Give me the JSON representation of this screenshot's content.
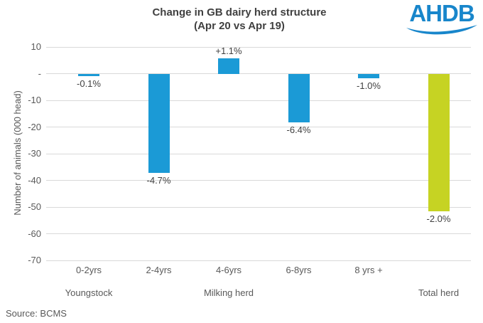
{
  "header": {
    "title_line1": "Change in GB dairy herd structure",
    "title_line2": "(Apr 20 vs Apr 19)",
    "logo_text": "AHDB"
  },
  "footer": {
    "source": "Source: BCMS"
  },
  "colors": {
    "bar_blue": "#1b9ad6",
    "bar_lime": "#c6d323",
    "logo_blue": "#1886cb",
    "gridline": "#d9d9d9",
    "title_text": "#404040",
    "axis_text": "#595959"
  },
  "chart_data": {
    "type": "bar",
    "title": "Change in GB dairy herd structure (Apr 20 vs Apr 19)",
    "ylabel": "Number of animals (000 head)",
    "ylim": [
      -70,
      10
    ],
    "ytick_step": 10,
    "ytick_labels": [
      "10",
      "-",
      "-10",
      "-20",
      "-30",
      "-40",
      "-50",
      "-60",
      "-70"
    ],
    "grid": true,
    "legend": false,
    "categories": [
      "0-2yrs",
      "2-4yrs",
      "4-6yrs",
      "6-8yrs",
      "8 yrs +",
      "Total herd"
    ],
    "category_tick_labels": [
      "0-2yrs",
      "2-4yrs",
      "4-6yrs",
      "6-8yrs",
      "8 yrs +",
      ""
    ],
    "values": [
      -0.8,
      -37.3,
      5.7,
      -18.3,
      -1.6,
      -51.5
    ],
    "value_unit": "000 head",
    "bar_labels": [
      "-0.1%",
      "-4.7%",
      "+1.1%",
      "-6.4%",
      "-1.0%",
      "-2.0%"
    ],
    "bar_colors": [
      "#1b9ad6",
      "#1b9ad6",
      "#1b9ad6",
      "#1b9ad6",
      "#1b9ad6",
      "#c6d323"
    ],
    "group_labels": [
      {
        "label": "Youngstock",
        "span": [
          0,
          0
        ]
      },
      {
        "label": "Milking herd",
        "span": [
          1,
          3
        ]
      },
      {
        "label": "Total herd",
        "span": [
          5,
          5
        ]
      }
    ],
    "source": "Source: BCMS"
  }
}
